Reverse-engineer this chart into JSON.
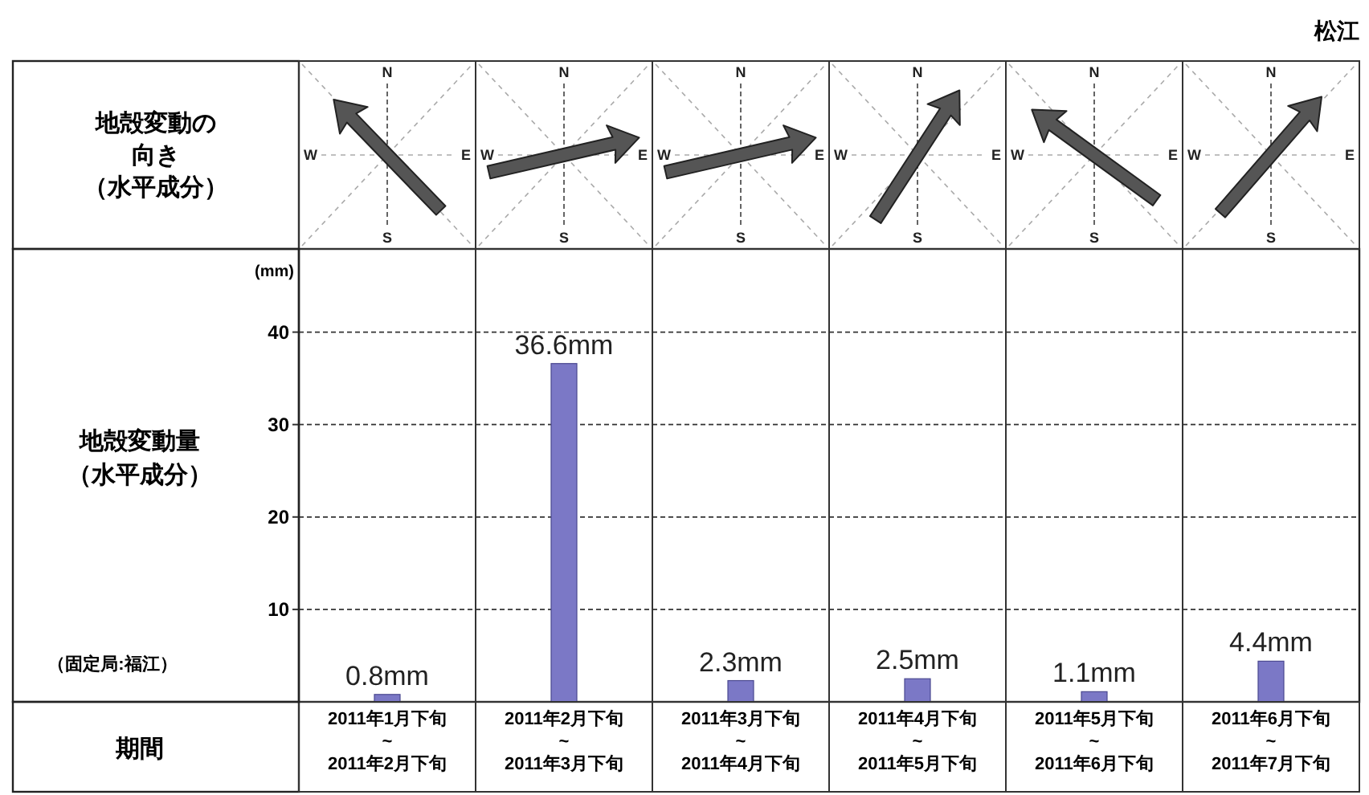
{
  "chart_data": {
    "type": "bar",
    "title": "松江",
    "ylabel": "地殻変動量（水平成分）",
    "annotations": [
      "(mm)",
      "地殻変動の",
      "向き",
      "（水平成分）",
      "（固定局:福江）",
      "期間",
      "N",
      "E",
      "S",
      "W"
    ],
    "categories": [
      "2011年1月下旬\n~\n2011年2月下旬",
      "2011年2月下旬\n~\n2011年3月下旬",
      "2011年3月下旬\n~\n2011年4月下旬",
      "2011年4月下旬\n~\n2011年5月下旬",
      "2011年5月下旬\n~\n2011年6月下旬",
      "2011年6月下旬\n~\n2011年7月下旬"
    ],
    "values": [
      0.8,
      36.6,
      2.3,
      2.5,
      1.1,
      4.4
    ],
    "value_labels": [
      "0.8mm",
      "36.6mm",
      "2.3mm",
      "2.5mm",
      "1.1mm",
      "4.4mm"
    ],
    "color": "#7b78c6",
    "ylim": [
      0,
      49
    ],
    "yticks": [
      10,
      20,
      30,
      40
    ],
    "grid": "y"
  }
}
